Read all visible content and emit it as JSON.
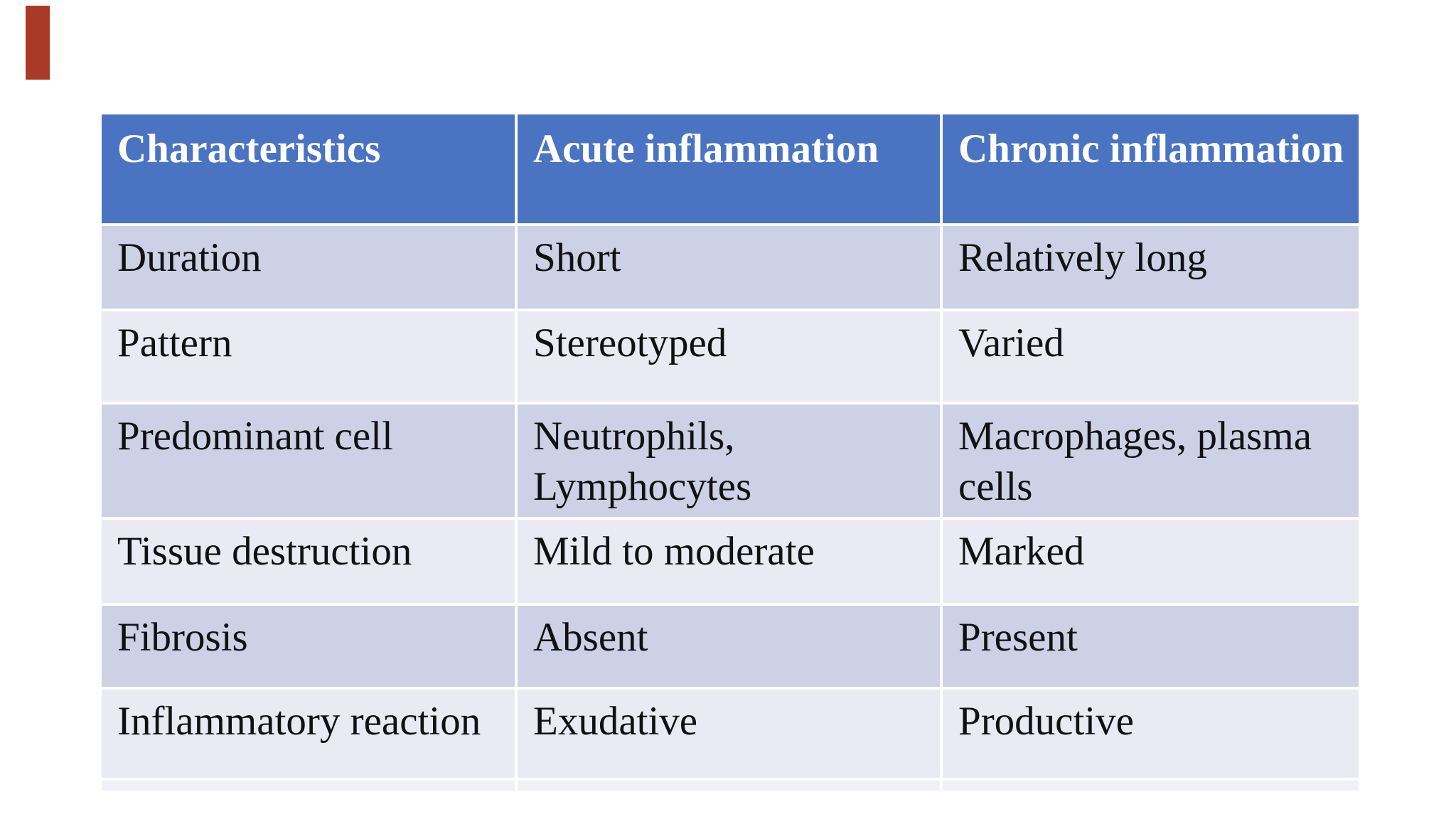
{
  "slide": {
    "background": "#ffffff"
  },
  "accents": {
    "red_bar_color": "#a93a28",
    "header_bg": "#4a73c2",
    "row_dark_bg": "#cdd1e6",
    "row_light_bg": "#e9eaf4",
    "sliver_bg": "#f0f1f8",
    "header_text_color": "#ffffff",
    "body_text_color": "#111111"
  },
  "table": {
    "columns": [
      "Characteristics",
      "Acute inflammation",
      "Chronic inflammation"
    ],
    "rows": [
      {
        "characteristic": "Duration",
        "acute": "Short",
        "chronic": "Relatively long"
      },
      {
        "characteristic": "Pattern",
        "acute": "Stereotyped",
        "chronic": "Varied"
      },
      {
        "characteristic": "Predominant cell",
        "acute": "Neutrophils, Lymphocytes",
        "chronic": "Macrophages, plasma cells"
      },
      {
        "characteristic": "Tissue destruction",
        "acute": "Mild to moderate",
        "chronic": "Marked"
      },
      {
        "characteristic": "Fibrosis",
        "acute": "Absent",
        "chronic": "Present"
      },
      {
        "characteristic": "Inflammatory reaction",
        "acute": "Exudative",
        "chronic": "Productive"
      }
    ]
  }
}
